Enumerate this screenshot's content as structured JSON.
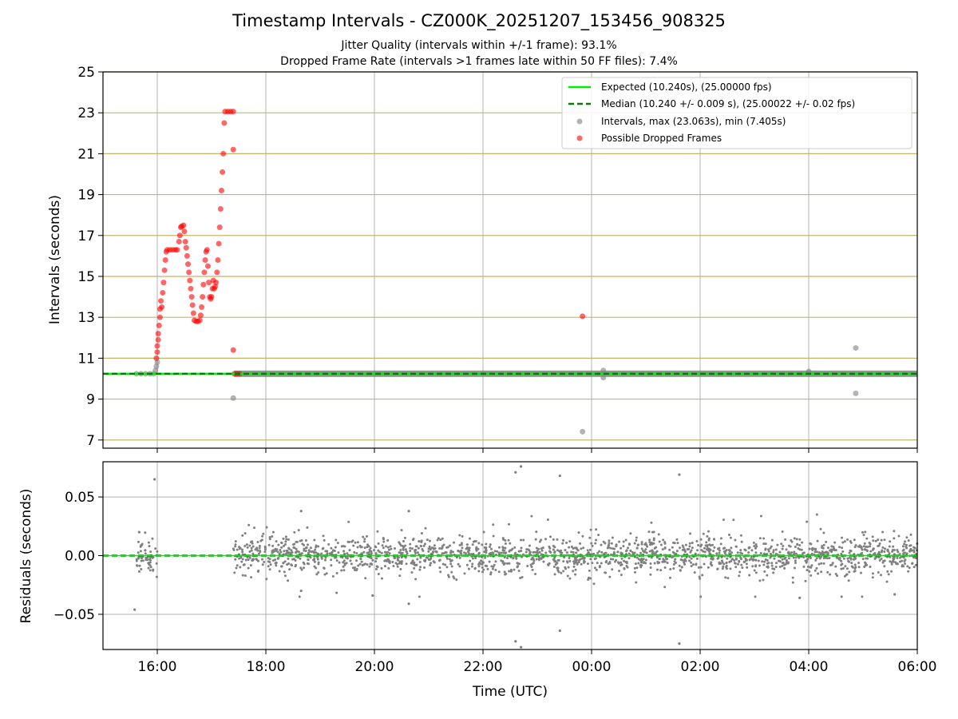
{
  "title": "Timestamp Intervals - CZ000K_20251207_153456_908325",
  "subtitle_lines": [
    "Jitter Quality (intervals within +/-1 frame): 93.1%",
    "Dropped Frame Rate (intervals >1 frames late within 50 FF files): 7.4%"
  ],
  "colors": {
    "expected": "#00ee00",
    "median": "#008000",
    "intervals": "#808080",
    "dropped": "#ff0000",
    "hgrid_top": "#c8b464",
    "grid": "#b0b0b0"
  },
  "chart_data": [
    {
      "type": "scatter",
      "name": "intervals",
      "title": "",
      "xlabel": "",
      "ylabel": "Intervals (seconds)",
      "xlim": [
        "15:00",
        "06:00"
      ],
      "xticks": [
        "16:00",
        "18:00",
        "20:00",
        "22:00",
        "00:00",
        "02:00",
        "04:00",
        "06:00"
      ],
      "ylim": [
        6.6,
        25
      ],
      "yticks": [
        7,
        9,
        11,
        13,
        15,
        17,
        19,
        21,
        23,
        25
      ],
      "grid": true,
      "legend_position": "top-right",
      "legend": [
        "Expected (10.240s), (25.00000 fps)",
        "Median (10.240 +/- 0.009 s), (25.00022 +/- 0.02 fps)",
        "Intervals, max (23.063s), min (7.405s)",
        "Possible Dropped Frames"
      ],
      "expected_value": 10.24,
      "median_value": 10.24,
      "series": [
        {
          "name": "Intervals, max (23.063s), min (7.405s)",
          "points": [
            [
              "15:37",
              10.24
            ],
            [
              "15:42",
              10.24
            ],
            [
              "15:47",
              10.24
            ],
            [
              "15:52",
              10.24
            ],
            [
              "15:56",
              10.24
            ],
            [
              "15:58",
              10.4
            ],
            [
              "15:59",
              10.6
            ],
            [
              "16:00",
              10.8
            ],
            [
              "17:24",
              9.05
            ],
            [
              "23:50",
              7.405
            ],
            [
              "00:13",
              10.4
            ],
            [
              "00:13",
              10.05
            ],
            [
              "04:00",
              10.35
            ],
            [
              "04:52",
              11.5
            ],
            [
              "04:52",
              9.28
            ]
          ],
          "band_from": "17:25",
          "band_to": "06:00",
          "band_value": 10.24
        },
        {
          "name": "Possible Dropped Frames",
          "points": [
            [
              "15:59",
              11.0
            ],
            [
              "16:00",
              11.3
            ],
            [
              "16:00",
              11.6
            ],
            [
              "16:01",
              11.9
            ],
            [
              "16:01",
              12.2
            ],
            [
              "16:02",
              12.6
            ],
            [
              "16:03",
              13.0
            ],
            [
              "16:03",
              13.4
            ],
            [
              "16:04",
              13.8
            ],
            [
              "16:05",
              13.5
            ],
            [
              "16:06",
              14.2
            ],
            [
              "16:07",
              14.7
            ],
            [
              "16:08",
              15.3
            ],
            [
              "16:09",
              15.8
            ],
            [
              "16:10",
              16.2
            ],
            [
              "16:11",
              16.3
            ],
            [
              "16:14",
              16.3
            ],
            [
              "16:17",
              16.3
            ],
            [
              "16:20",
              16.3
            ],
            [
              "16:22",
              16.3
            ],
            [
              "16:24",
              16.7
            ],
            [
              "16:25",
              17.0
            ],
            [
              "16:26",
              17.4
            ],
            [
              "16:27",
              17.45
            ],
            [
              "16:29",
              17.5
            ],
            [
              "16:30",
              17.2
            ],
            [
              "16:31",
              16.7
            ],
            [
              "16:32",
              16.4
            ],
            [
              "16:33",
              16.0
            ],
            [
              "16:34",
              15.6
            ],
            [
              "16:35",
              15.2
            ],
            [
              "16:36",
              14.8
            ],
            [
              "16:37",
              14.4
            ],
            [
              "16:38",
              14.0
            ],
            [
              "16:39",
              13.6
            ],
            [
              "16:40",
              13.2
            ],
            [
              "16:41",
              12.85
            ],
            [
              "16:43",
              12.8
            ],
            [
              "16:45",
              12.8
            ],
            [
              "16:47",
              12.85
            ],
            [
              "16:48",
              13.1
            ],
            [
              "16:49",
              13.5
            ],
            [
              "16:50",
              14.0
            ],
            [
              "16:51",
              14.6
            ],
            [
              "16:52",
              15.2
            ],
            [
              "16:53",
              15.8
            ],
            [
              "16:54",
              16.2
            ],
            [
              "16:55",
              16.3
            ],
            [
              "16:56",
              15.5
            ],
            [
              "16:57",
              14.7
            ],
            [
              "16:58",
              14.0
            ],
            [
              "16:59",
              13.9
            ],
            [
              "17:00",
              14.0
            ],
            [
              "17:01",
              14.4
            ],
            [
              "17:02",
              14.8
            ],
            [
              "17:03",
              14.4
            ],
            [
              "17:04",
              14.5
            ],
            [
              "17:05",
              14.7
            ],
            [
              "17:06",
              15.2
            ],
            [
              "17:07",
              15.8
            ],
            [
              "17:08",
              16.6
            ],
            [
              "17:09",
              17.4
            ],
            [
              "17:10",
              18.3
            ],
            [
              "17:11",
              19.2
            ],
            [
              "17:12",
              20.1
            ],
            [
              "17:13",
              21.0
            ],
            [
              "17:14",
              22.5
            ],
            [
              "17:15",
              23.06
            ],
            [
              "17:18",
              23.06
            ],
            [
              "17:21",
              23.06
            ],
            [
              "17:24",
              23.06
            ],
            [
              "17:24",
              21.2
            ],
            [
              "17:24",
              11.4
            ],
            [
              "17:25",
              10.24
            ],
            [
              "17:28",
              10.24
            ],
            [
              "17:31",
              10.24
            ],
            [
              "23:50",
              13.05
            ]
          ]
        }
      ]
    },
    {
      "type": "scatter",
      "name": "residuals",
      "title": "",
      "xlabel": "Time (UTC)",
      "ylabel": "Residuals (seconds)",
      "xlim": [
        "15:00",
        "06:00"
      ],
      "xticks": [
        "16:00",
        "18:00",
        "20:00",
        "22:00",
        "00:00",
        "02:00",
        "04:00",
        "06:00"
      ],
      "ylim": [
        -0.08,
        0.08
      ],
      "yticks": [
        "−0.05",
        "0.00",
        "0.05"
      ],
      "ytick_values": [
        -0.05,
        0.0,
        0.05
      ],
      "grid": true,
      "zero_line": 0.0,
      "typical_spread": 0.008,
      "outliers": [
        [
          "15:57",
          0.065
        ],
        [
          "15:35",
          -0.046
        ],
        [
          "15:40",
          0.02
        ],
        [
          "18:39",
          0.038
        ],
        [
          "18:39",
          -0.03
        ],
        [
          "19:58",
          -0.034
        ],
        [
          "20:38",
          0.038
        ],
        [
          "20:38",
          -0.041
        ],
        [
          "22:36",
          0.071
        ],
        [
          "22:42",
          0.076
        ],
        [
          "22:36",
          -0.073
        ],
        [
          "22:42",
          -0.078
        ],
        [
          "23:25",
          0.068
        ],
        [
          "23:25",
          -0.064
        ],
        [
          "01:37",
          0.069
        ],
        [
          "01:37",
          -0.075
        ],
        [
          "03:50",
          -0.036
        ],
        [
          "05:35",
          -0.033
        ]
      ]
    }
  ]
}
